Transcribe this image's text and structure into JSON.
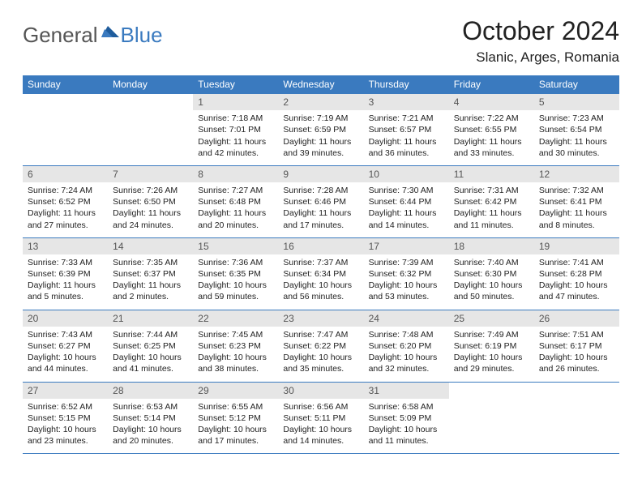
{
  "brand": {
    "general": "General",
    "blue": "Blue"
  },
  "colors": {
    "header_bg": "#3a7abf",
    "header_text": "#ffffff",
    "daynum_bg": "#e6e6e6",
    "daynum_text": "#555555",
    "body_text": "#222222",
    "border": "#3a7abf",
    "page_bg": "#ffffff"
  },
  "typography": {
    "title_fontsize": 32,
    "location_fontsize": 17,
    "day_fontsize": 10.5
  },
  "title": "October 2024",
  "location": "Slanic, Arges, Romania",
  "weekdays": [
    "Sunday",
    "Monday",
    "Tuesday",
    "Wednesday",
    "Thursday",
    "Friday",
    "Saturday"
  ],
  "layout": {
    "columns": 7,
    "rows": 5,
    "first_weekday_index": 2,
    "aspect_ratio": "792:612"
  },
  "days": [
    {
      "n": "1",
      "sunrise": "Sunrise: 7:18 AM",
      "sunset": "Sunset: 7:01 PM",
      "daylight": "Daylight: 11 hours and 42 minutes."
    },
    {
      "n": "2",
      "sunrise": "Sunrise: 7:19 AM",
      "sunset": "Sunset: 6:59 PM",
      "daylight": "Daylight: 11 hours and 39 minutes."
    },
    {
      "n": "3",
      "sunrise": "Sunrise: 7:21 AM",
      "sunset": "Sunset: 6:57 PM",
      "daylight": "Daylight: 11 hours and 36 minutes."
    },
    {
      "n": "4",
      "sunrise": "Sunrise: 7:22 AM",
      "sunset": "Sunset: 6:55 PM",
      "daylight": "Daylight: 11 hours and 33 minutes."
    },
    {
      "n": "5",
      "sunrise": "Sunrise: 7:23 AM",
      "sunset": "Sunset: 6:54 PM",
      "daylight": "Daylight: 11 hours and 30 minutes."
    },
    {
      "n": "6",
      "sunrise": "Sunrise: 7:24 AM",
      "sunset": "Sunset: 6:52 PM",
      "daylight": "Daylight: 11 hours and 27 minutes."
    },
    {
      "n": "7",
      "sunrise": "Sunrise: 7:26 AM",
      "sunset": "Sunset: 6:50 PM",
      "daylight": "Daylight: 11 hours and 24 minutes."
    },
    {
      "n": "8",
      "sunrise": "Sunrise: 7:27 AM",
      "sunset": "Sunset: 6:48 PM",
      "daylight": "Daylight: 11 hours and 20 minutes."
    },
    {
      "n": "9",
      "sunrise": "Sunrise: 7:28 AM",
      "sunset": "Sunset: 6:46 PM",
      "daylight": "Daylight: 11 hours and 17 minutes."
    },
    {
      "n": "10",
      "sunrise": "Sunrise: 7:30 AM",
      "sunset": "Sunset: 6:44 PM",
      "daylight": "Daylight: 11 hours and 14 minutes."
    },
    {
      "n": "11",
      "sunrise": "Sunrise: 7:31 AM",
      "sunset": "Sunset: 6:42 PM",
      "daylight": "Daylight: 11 hours and 11 minutes."
    },
    {
      "n": "12",
      "sunrise": "Sunrise: 7:32 AM",
      "sunset": "Sunset: 6:41 PM",
      "daylight": "Daylight: 11 hours and 8 minutes."
    },
    {
      "n": "13",
      "sunrise": "Sunrise: 7:33 AM",
      "sunset": "Sunset: 6:39 PM",
      "daylight": "Daylight: 11 hours and 5 minutes."
    },
    {
      "n": "14",
      "sunrise": "Sunrise: 7:35 AM",
      "sunset": "Sunset: 6:37 PM",
      "daylight": "Daylight: 11 hours and 2 minutes."
    },
    {
      "n": "15",
      "sunrise": "Sunrise: 7:36 AM",
      "sunset": "Sunset: 6:35 PM",
      "daylight": "Daylight: 10 hours and 59 minutes."
    },
    {
      "n": "16",
      "sunrise": "Sunrise: 7:37 AM",
      "sunset": "Sunset: 6:34 PM",
      "daylight": "Daylight: 10 hours and 56 minutes."
    },
    {
      "n": "17",
      "sunrise": "Sunrise: 7:39 AM",
      "sunset": "Sunset: 6:32 PM",
      "daylight": "Daylight: 10 hours and 53 minutes."
    },
    {
      "n": "18",
      "sunrise": "Sunrise: 7:40 AM",
      "sunset": "Sunset: 6:30 PM",
      "daylight": "Daylight: 10 hours and 50 minutes."
    },
    {
      "n": "19",
      "sunrise": "Sunrise: 7:41 AM",
      "sunset": "Sunset: 6:28 PM",
      "daylight": "Daylight: 10 hours and 47 minutes."
    },
    {
      "n": "20",
      "sunrise": "Sunrise: 7:43 AM",
      "sunset": "Sunset: 6:27 PM",
      "daylight": "Daylight: 10 hours and 44 minutes."
    },
    {
      "n": "21",
      "sunrise": "Sunrise: 7:44 AM",
      "sunset": "Sunset: 6:25 PM",
      "daylight": "Daylight: 10 hours and 41 minutes."
    },
    {
      "n": "22",
      "sunrise": "Sunrise: 7:45 AM",
      "sunset": "Sunset: 6:23 PM",
      "daylight": "Daylight: 10 hours and 38 minutes."
    },
    {
      "n": "23",
      "sunrise": "Sunrise: 7:47 AM",
      "sunset": "Sunset: 6:22 PM",
      "daylight": "Daylight: 10 hours and 35 minutes."
    },
    {
      "n": "24",
      "sunrise": "Sunrise: 7:48 AM",
      "sunset": "Sunset: 6:20 PM",
      "daylight": "Daylight: 10 hours and 32 minutes."
    },
    {
      "n": "25",
      "sunrise": "Sunrise: 7:49 AM",
      "sunset": "Sunset: 6:19 PM",
      "daylight": "Daylight: 10 hours and 29 minutes."
    },
    {
      "n": "26",
      "sunrise": "Sunrise: 7:51 AM",
      "sunset": "Sunset: 6:17 PM",
      "daylight": "Daylight: 10 hours and 26 minutes."
    },
    {
      "n": "27",
      "sunrise": "Sunrise: 6:52 AM",
      "sunset": "Sunset: 5:15 PM",
      "daylight": "Daylight: 10 hours and 23 minutes."
    },
    {
      "n": "28",
      "sunrise": "Sunrise: 6:53 AM",
      "sunset": "Sunset: 5:14 PM",
      "daylight": "Daylight: 10 hours and 20 minutes."
    },
    {
      "n": "29",
      "sunrise": "Sunrise: 6:55 AM",
      "sunset": "Sunset: 5:12 PM",
      "daylight": "Daylight: 10 hours and 17 minutes."
    },
    {
      "n": "30",
      "sunrise": "Sunrise: 6:56 AM",
      "sunset": "Sunset: 5:11 PM",
      "daylight": "Daylight: 10 hours and 14 minutes."
    },
    {
      "n": "31",
      "sunrise": "Sunrise: 6:58 AM",
      "sunset": "Sunset: 5:09 PM",
      "daylight": "Daylight: 10 hours and 11 minutes."
    }
  ]
}
